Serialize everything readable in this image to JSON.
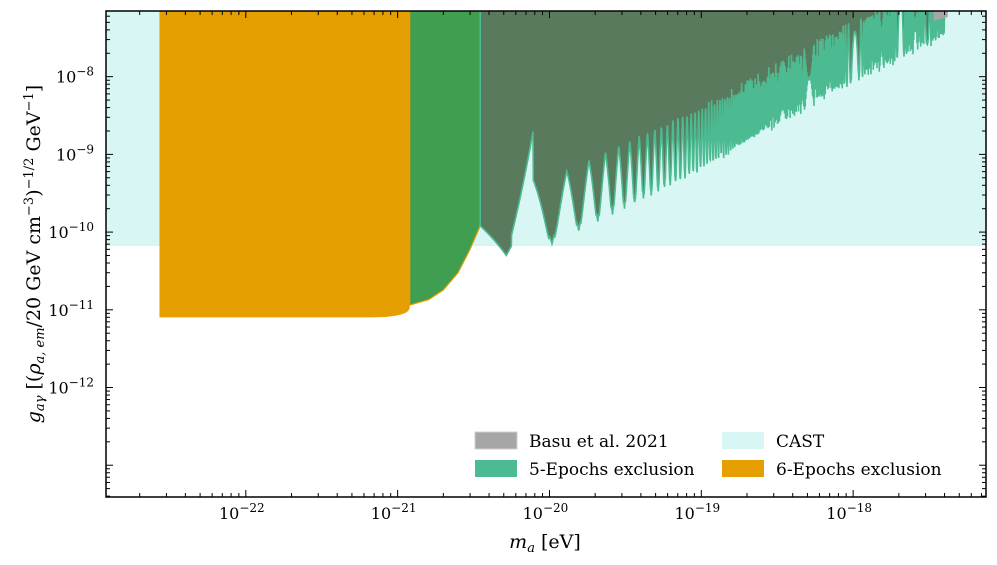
{
  "chart_data": {
    "type": "area",
    "title": "",
    "xlabel": "m_a [eV]",
    "ylabel": "g_aγ [(ρ_a,em/20 GeV cm^-3)^-1/2 GeV^-1]",
    "xscale": "log",
    "yscale": "log",
    "xlim": [
      1.2e-23,
      7.5e-18
    ],
    "ylim": [
      3.9e-14,
      7e-08
    ],
    "x_ticks": [
      {
        "value": 1e-22,
        "base": "10",
        "exp": "−22"
      },
      {
        "value": 1e-21,
        "base": "10",
        "exp": "−21"
      },
      {
        "value": 1e-20,
        "base": "10",
        "exp": "−20"
      },
      {
        "value": 1e-19,
        "base": "10",
        "exp": "−19"
      },
      {
        "value": 1e-18,
        "base": "10",
        "exp": "−18"
      }
    ],
    "y_ticks": [
      {
        "value": 1e-12,
        "base": "10",
        "exp": "−12"
      },
      {
        "value": 1e-11,
        "base": "10",
        "exp": "−11"
      },
      {
        "value": 1e-10,
        "base": "10",
        "exp": "−10"
      },
      {
        "value": 1e-09,
        "base": "10",
        "exp": "−9"
      },
      {
        "value": 1e-08,
        "base": "10",
        "exp": "−8"
      }
    ],
    "series": [
      {
        "name": "CAST",
        "kind": "band",
        "color": "#d8f6f4",
        "y_lower": 6.6e-11,
        "y_upper": "top"
      },
      {
        "name": "6-Epochs exclusion",
        "kind": "exclusion-flat",
        "color": "#e69f00",
        "x_start": 2.7e-23,
        "x_end": 1.2e-21,
        "y_floor": 8e-12,
        "y_upper": "top"
      },
      {
        "name": "5-Epochs exclusion",
        "kind": "exclusion-rise",
        "color": "#3f9e4f",
        "x_start": 1.2e-21,
        "x_end": 3.5e-21,
        "points": [
          {
            "x": 1.2e-21,
            "y": 1.15e-11
          },
          {
            "x": 1.6e-21,
            "y": 1.35e-11
          },
          {
            "x": 2e-21,
            "y": 1.8e-11
          },
          {
            "x": 2.5e-21,
            "y": 3e-11
          },
          {
            "x": 3e-21,
            "y": 6e-11
          },
          {
            "x": 3.5e-21,
            "y": 1.2e-10
          }
        ],
        "y_upper": "top"
      },
      {
        "name": "Basu et al. 2021",
        "kind": "exclusion-oscillating",
        "color": "#5a7a5e",
        "x_start": 3.5e-21,
        "x_end": 4.2e-18,
        "first_dip_x": 5.2e-21,
        "first_dip_y": 5e-11,
        "envelope": [
          {
            "x": 1e-20,
            "y": 6.8e-11
          },
          {
            "x": 1e-19,
            "y": 6e-10
          },
          {
            "x": 1e-18,
            "y": 8e-09
          },
          {
            "x": 4.2e-18,
            "y": 3e-08
          }
        ]
      }
    ],
    "legend": {
      "placement": "bottom-right",
      "entries": [
        {
          "label": "Basu et al. 2021",
          "color": "#a6a6a6"
        },
        {
          "label": "5-Epochs exclusion",
          "color": "#4dbb92"
        },
        {
          "label": "CAST",
          "color": "#d8f6f4"
        },
        {
          "label": "6-Epochs exclusion",
          "color": "#e69f00"
        }
      ]
    }
  }
}
